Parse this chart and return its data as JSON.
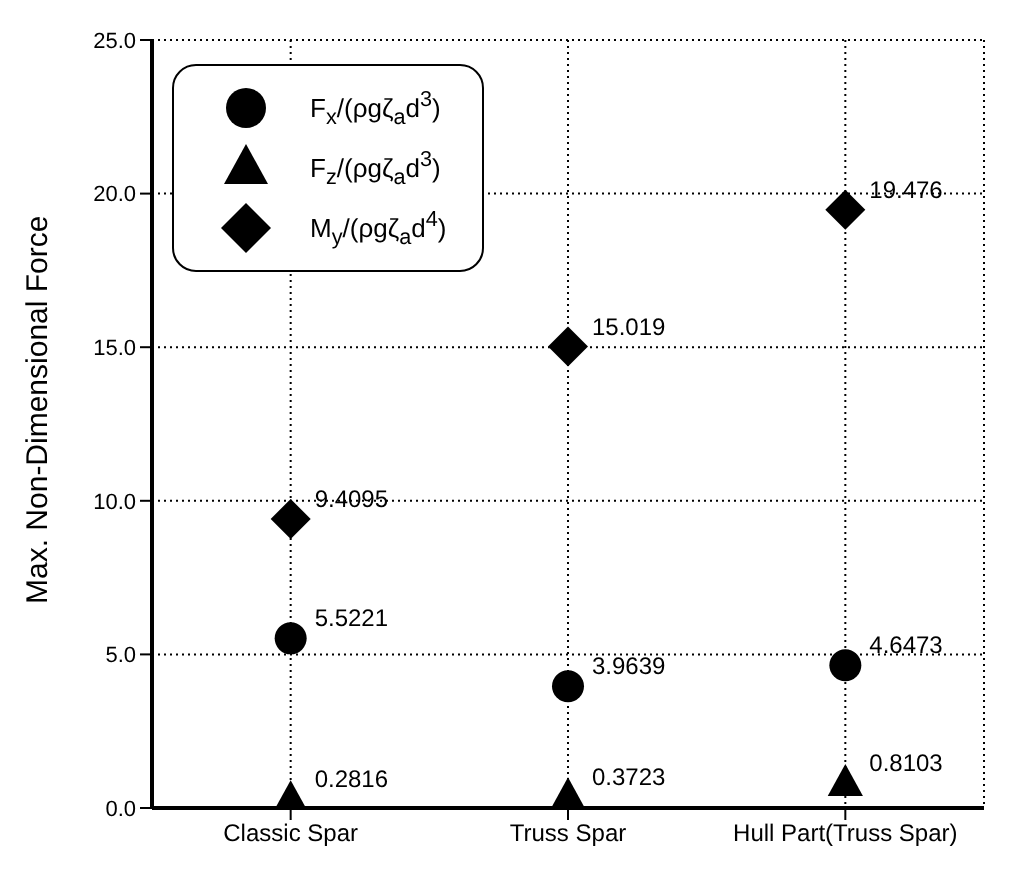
{
  "chart_data": {
    "type": "scatter",
    "ylabel": "Max. Non-Dimensional Force",
    "categories": [
      "Classic Spar",
      "Truss Spar",
      "Hull Part(Truss Spar)"
    ],
    "series": [
      {
        "name": "F$_{x}$/(ρgζ$_{a}$d$^{3}$)",
        "color": "#000000",
        "marker": "circle",
        "values": [
          5.5221,
          3.9639,
          4.6473
        ]
      },
      {
        "name": "F$_{z}$/(ρgζ$_{a}$d$^{3}$)",
        "color": "#000000",
        "marker": "triangle",
        "values": [
          0.2816,
          0.3723,
          0.8103
        ]
      },
      {
        "name": "M$_{y}$/(ρgζ$_{a}$d$^{4}$)",
        "color": "#000000",
        "marker": "diamond",
        "values": [
          9.4095,
          15.019,
          19.476
        ]
      }
    ],
    "ylim": [
      0,
      25
    ],
    "yticks": [
      {
        "value": 0,
        "label": "0.0"
      },
      {
        "value": 5,
        "label": "5.0"
      },
      {
        "value": 10,
        "label": "10.0"
      },
      {
        "value": 15,
        "label": "15.0"
      },
      {
        "value": 20,
        "label": "20.0"
      },
      {
        "value": 25,
        "label": "25.0"
      }
    ],
    "grid": true,
    "legend": "top left",
    "data_labels": true
  }
}
